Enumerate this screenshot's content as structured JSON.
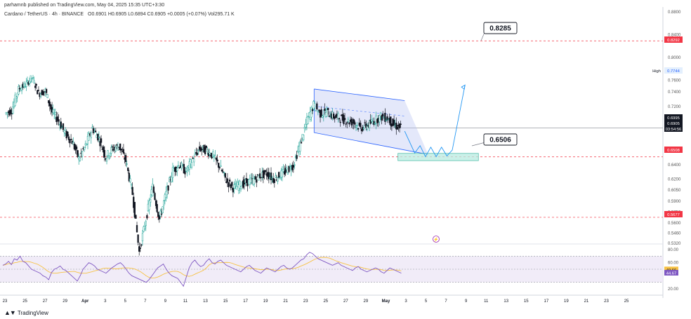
{
  "header": {
    "published": "parhamnb published on TradingView.com, May 04, 2025 15:35 UTC+3:30",
    "symbol": "Cardano / TetherUS · 4h · BINANCE",
    "open": "O0.6901",
    "high": "H0.6905",
    "low": "L0.6894",
    "close": "C0.6905",
    "change": "+0.0005 (+0.07%)",
    "volume": "Vol295.71 K"
  },
  "footer": {
    "brand": "TradingView"
  },
  "colors": {
    "up": "#26a69a",
    "down": "#131722",
    "accent_red": "#f23645",
    "channel": "#2962ff",
    "rsi_line": "#7e57c2",
    "rsi_ma": "#f7c244",
    "zone": "#22ab94",
    "projection": "#2196f3"
  },
  "chart_data": {
    "type": "candlestick",
    "symbol": "ADA/USDT",
    "timeframe": "4h",
    "price_axis": {
      "ticks": [
        "0.8800",
        "0.8400",
        "0.8000",
        "0.7800",
        "0.7600",
        "0.7400",
        "0.7200",
        "0.6600",
        "0.6400",
        "0.6200",
        "0.6050",
        "0.5900",
        "0.5750",
        "0.5600",
        "0.5460",
        "0.5320"
      ],
      "labels": [
        {
          "text": "0.8292",
          "kind": "red"
        },
        {
          "text": "0.7744",
          "kind": "high",
          "tag": "High"
        },
        {
          "text": "0.6995",
          "kind": "dark"
        },
        {
          "text": "0.6905",
          "kind": "dark"
        },
        {
          "text": "03:54:56",
          "kind": "dark"
        },
        {
          "text": "0.6508",
          "kind": "red"
        },
        {
          "text": "0.5677",
          "kind": "red"
        }
      ]
    },
    "time_axis": [
      "23",
      "25",
      "27",
      "29",
      "Apr",
      "3",
      "5",
      "7",
      "9",
      "11",
      "13",
      "15",
      "17",
      "19",
      "21",
      "23",
      "25",
      "27",
      "29",
      "May",
      "3",
      "5",
      "7",
      "9",
      "11",
      "13",
      "15",
      "17",
      "19",
      "21",
      "23",
      "25"
    ],
    "levels": [
      {
        "price": 0.8292,
        "style": "dashed-red"
      },
      {
        "price": 0.6508,
        "style": "dashed-red"
      },
      {
        "price": 0.5677,
        "style": "dashed-red"
      },
      {
        "price": 0.6905,
        "style": "solid-grey"
      }
    ],
    "annotations": [
      {
        "text": "0.8285",
        "target_price": 0.8285
      },
      {
        "text": "0.6506",
        "target_price": 0.6506
      }
    ],
    "price_series": [
      {
        "day": 0,
        "price": 0.71
      },
      {
        "day": 1,
        "price": 0.715
      },
      {
        "day": 2,
        "price": 0.745
      },
      {
        "day": 3,
        "price": 0.752
      },
      {
        "day": 4,
        "price": 0.765
      },
      {
        "day": 5,
        "price": 0.738
      },
      {
        "day": 6,
        "price": 0.742
      },
      {
        "day": 7,
        "price": 0.712
      },
      {
        "day": 8,
        "price": 0.7
      },
      {
        "day": 9,
        "price": 0.682
      },
      {
        "day": 10,
        "price": 0.672
      },
      {
        "day": 11,
        "price": 0.648
      },
      {
        "day": 12,
        "price": 0.666
      },
      {
        "day": 13,
        "price": 0.69
      },
      {
        "day": 14,
        "price": 0.676
      },
      {
        "day": 15,
        "price": 0.65
      },
      {
        "day": 16,
        "price": 0.662
      },
      {
        "day": 17,
        "price": 0.666
      },
      {
        "day": 18,
        "price": 0.645
      },
      {
        "day": 19,
        "price": 0.6
      },
      {
        "day": 20,
        "price": 0.52
      },
      {
        "day": 21,
        "price": 0.565
      },
      {
        "day": 22,
        "price": 0.61
      },
      {
        "day": 23,
        "price": 0.565
      },
      {
        "day": 24,
        "price": 0.6
      },
      {
        "day": 25,
        "price": 0.632
      },
      {
        "day": 26,
        "price": 0.64
      },
      {
        "day": 27,
        "price": 0.63
      },
      {
        "day": 28,
        "price": 0.648
      },
      {
        "day": 29,
        "price": 0.662
      },
      {
        "day": 30,
        "price": 0.66
      },
      {
        "day": 31,
        "price": 0.652
      },
      {
        "day": 32,
        "price": 0.637
      },
      {
        "day": 33,
        "price": 0.618
      },
      {
        "day": 34,
        "price": 0.608
      },
      {
        "day": 35,
        "price": 0.612
      },
      {
        "day": 36,
        "price": 0.616
      },
      {
        "day": 37,
        "price": 0.618
      },
      {
        "day": 38,
        "price": 0.625
      },
      {
        "day": 39,
        "price": 0.628
      },
      {
        "day": 40,
        "price": 0.62
      },
      {
        "day": 41,
        "price": 0.626
      },
      {
        "day": 42,
        "price": 0.632
      },
      {
        "day": 43,
        "price": 0.64
      },
      {
        "day": 44,
        "price": 0.668
      },
      {
        "day": 45,
        "price": 0.7
      },
      {
        "day": 46,
        "price": 0.722
      },
      {
        "day": 47,
        "price": 0.71
      },
      {
        "day": 48,
        "price": 0.712
      },
      {
        "day": 49,
        "price": 0.706
      },
      {
        "day": 50,
        "price": 0.704
      },
      {
        "day": 51,
        "price": 0.7
      },
      {
        "day": 52,
        "price": 0.698
      },
      {
        "day": 53,
        "price": 0.69
      },
      {
        "day": 54,
        "price": 0.694
      },
      {
        "day": 55,
        "price": 0.7
      },
      {
        "day": 56,
        "price": 0.706
      },
      {
        "day": 57,
        "price": 0.704
      },
      {
        "day": 58,
        "price": 0.694
      },
      {
        "day": 59,
        "price": 0.6905
      }
    ],
    "projection_path": [
      {
        "day": 59.5,
        "price": 0.686
      },
      {
        "day": 61,
        "price": 0.656
      },
      {
        "day": 61.8,
        "price": 0.666
      },
      {
        "day": 62.6,
        "price": 0.651
      },
      {
        "day": 63.4,
        "price": 0.664
      },
      {
        "day": 64.2,
        "price": 0.651
      },
      {
        "day": 65,
        "price": 0.664
      },
      {
        "day": 65.8,
        "price": 0.652
      },
      {
        "day": 66.6,
        "price": 0.66
      },
      {
        "day": 68.5,
        "price": 0.752
      }
    ],
    "channel": {
      "top": [
        {
          "day": 46,
          "price": 0.745
        },
        {
          "day": 59.5,
          "price": 0.728
        }
      ],
      "bottom": [
        {
          "day": 46,
          "price": 0.684
        },
        {
          "day": 63,
          "price": 0.654
        }
      ]
    },
    "zone": {
      "day_start": 58.5,
      "day_end": 70.5,
      "price_low": 0.6455,
      "price_high": 0.6555
    },
    "rsi": {
      "ticks": [
        "80.00",
        "20.00"
      ],
      "labels": [
        {
          "text": "60.00",
          "kind": "plain"
        },
        {
          "text": "49.66",
          "kind": "yellow"
        },
        {
          "text": "44.67",
          "kind": "purple"
        }
      ],
      "band": [
        30,
        70
      ],
      "series": [
        56,
        58,
        62,
        57,
        66,
        64,
        70,
        62,
        60,
        55,
        50,
        48,
        46,
        44,
        40,
        38,
        34,
        45,
        50,
        52,
        55,
        50,
        48,
        44,
        40,
        36,
        32,
        40,
        50,
        55,
        60,
        58,
        55,
        50,
        48,
        46,
        44,
        48,
        52,
        55,
        58,
        60,
        56,
        50,
        44,
        40,
        38,
        36,
        34,
        32,
        30,
        34,
        40,
        46,
        52,
        55,
        58,
        50,
        44,
        40,
        38,
        36,
        30,
        24,
        38,
        52,
        60,
        64,
        58,
        54,
        56,
        62,
        66,
        60,
        58,
        62,
        64,
        60,
        56,
        54,
        52,
        50,
        48,
        46,
        50,
        54,
        56,
        52,
        48,
        46,
        44,
        48,
        52,
        50,
        48,
        46,
        50,
        54,
        56,
        52,
        50,
        52,
        56,
        60,
        64,
        66,
        72,
        76,
        74,
        70,
        66,
        64,
        62,
        60,
        58,
        56,
        58,
        60,
        56,
        54,
        52,
        50,
        48,
        52,
        54,
        50,
        48,
        46,
        48,
        50,
        52,
        50,
        46,
        44,
        48,
        52,
        50,
        48,
        46,
        44
      ]
    }
  }
}
